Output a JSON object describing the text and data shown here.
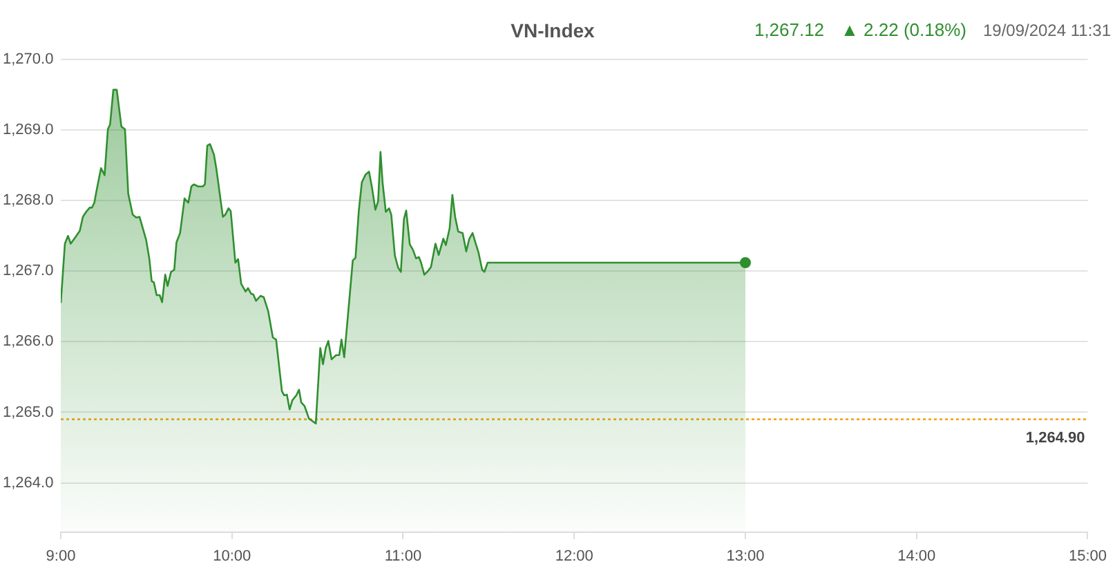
{
  "chart_data": {
    "type": "area",
    "title": "VN-Index",
    "annotations": [
      "1,267.12",
      "▲ 2.22 (0.18%)",
      "19/09/2024 11:31"
    ],
    "xlim": [
      9,
      15
    ],
    "xticks": [
      {
        "value": 9,
        "label": "9:00"
      },
      {
        "value": 10,
        "label": "10:00"
      },
      {
        "value": 11,
        "label": "11:00"
      },
      {
        "value": 12,
        "label": "12:00"
      },
      {
        "value": 13,
        "label": "13:00"
      },
      {
        "value": 14,
        "label": "14:00"
      },
      {
        "value": 15,
        "label": "15:00"
      }
    ],
    "ylim": [
      1263.3,
      1270
    ],
    "yticks": [
      {
        "value": 1264,
        "label": "1,264.0"
      },
      {
        "value": 1265,
        "label": "1,265.0"
      },
      {
        "value": 1266,
        "label": "1,266.0"
      },
      {
        "value": 1267,
        "label": "1,267.0"
      },
      {
        "value": 1268,
        "label": "1,268.0"
      },
      {
        "value": 1269,
        "label": "1,269.0"
      },
      {
        "value": 1270,
        "label": "1,270.0"
      }
    ],
    "grid": "y",
    "marker": "none",
    "line_style": "solid",
    "ref_lines": [
      {
        "axis": "y",
        "value": 1264.9,
        "label": "1,264.90",
        "color": "#f5a623",
        "line_style": "dotted"
      }
    ],
    "series": [
      {
        "color": "#2f8f2f",
        "x": [
          9.0,
          9.024,
          9.042,
          9.058,
          9.085,
          9.111,
          9.129,
          9.148,
          9.169,
          9.182,
          9.196,
          9.208,
          9.235,
          9.256,
          9.275,
          9.288,
          9.307,
          9.327,
          9.354,
          9.375,
          9.394,
          9.42,
          9.441,
          9.46,
          9.499,
          9.517,
          9.531,
          9.544,
          9.56,
          9.578,
          9.592,
          9.61,
          9.624,
          9.644,
          9.663,
          9.676,
          9.697,
          9.723,
          9.745,
          9.763,
          9.777,
          9.803,
          9.83,
          9.842,
          9.856,
          9.872,
          9.895,
          9.909,
          9.947,
          9.961,
          9.98,
          9.993,
          10.02,
          10.036,
          10.054,
          10.08,
          10.094,
          10.112,
          10.125,
          10.141,
          10.167,
          10.186,
          10.212,
          10.239,
          10.258,
          10.292,
          10.305,
          10.321,
          10.337,
          10.353,
          10.376,
          10.392,
          10.405,
          10.424,
          10.45,
          10.468,
          10.49,
          10.516,
          10.532,
          10.548,
          10.563,
          10.582,
          10.609,
          10.627,
          10.64,
          10.656,
          10.674,
          10.706,
          10.722,
          10.741,
          10.759,
          10.781,
          10.801,
          10.82,
          10.838,
          10.854,
          10.868,
          10.88,
          10.899,
          10.918,
          10.931,
          10.952,
          10.971,
          10.987,
          11.005,
          11.018,
          11.039,
          11.058,
          11.076,
          11.092,
          11.105,
          11.124,
          11.145,
          11.163,
          11.189,
          11.208,
          11.235,
          11.25,
          11.272,
          11.288,
          11.304,
          11.322,
          11.348,
          11.369,
          11.387,
          11.406,
          11.422,
          11.441,
          11.462,
          11.475,
          11.494,
          13.0
        ],
        "values": [
          1266.55,
          1267.39,
          1267.5,
          1267.39,
          1267.48,
          1267.57,
          1267.77,
          1267.84,
          1267.9,
          1267.9,
          1267.97,
          1268.13,
          1268.46,
          1268.36,
          1269.01,
          1269.08,
          1269.57,
          1269.57,
          1269.05,
          1269.01,
          1268.1,
          1267.8,
          1267.76,
          1267.77,
          1267.44,
          1267.18,
          1266.86,
          1266.84,
          1266.66,
          1266.66,
          1266.56,
          1266.95,
          1266.79,
          1266.99,
          1267.02,
          1267.41,
          1267.54,
          1268.03,
          1267.97,
          1268.2,
          1268.23,
          1268.2,
          1268.2,
          1268.23,
          1268.78,
          1268.8,
          1268.65,
          1268.45,
          1267.77,
          1267.8,
          1267.89,
          1267.85,
          1267.12,
          1267.17,
          1266.82,
          1266.71,
          1266.76,
          1266.68,
          1266.67,
          1266.58,
          1266.65,
          1266.63,
          1266.43,
          1266.06,
          1266.03,
          1265.3,
          1265.24,
          1265.25,
          1265.04,
          1265.17,
          1265.24,
          1265.32,
          1265.14,
          1265.09,
          1264.91,
          1264.88,
          1264.84,
          1265.91,
          1265.68,
          1265.91,
          1266.01,
          1265.75,
          1265.81,
          1265.81,
          1266.03,
          1265.78,
          1266.27,
          1267.15,
          1267.19,
          1267.85,
          1268.26,
          1268.37,
          1268.41,
          1268.16,
          1267.87,
          1267.99,
          1268.69,
          1268.26,
          1267.84,
          1267.89,
          1267.8,
          1267.22,
          1267.05,
          1266.99,
          1267.74,
          1267.86,
          1267.38,
          1267.3,
          1267.18,
          1267.2,
          1267.12,
          1266.95,
          1267.0,
          1267.06,
          1267.39,
          1267.23,
          1267.46,
          1267.37,
          1267.61,
          1268.08,
          1267.77,
          1267.56,
          1267.54,
          1267.28,
          1267.46,
          1267.54,
          1267.41,
          1267.26,
          1267.02,
          1266.99,
          1267.12,
          1267.12
        ]
      },
      {
        "type": "scatter",
        "color": "#2f8f2f",
        "marker": "circle",
        "x": [
          13.0
        ],
        "values": [
          1267.12
        ]
      }
    ]
  }
}
